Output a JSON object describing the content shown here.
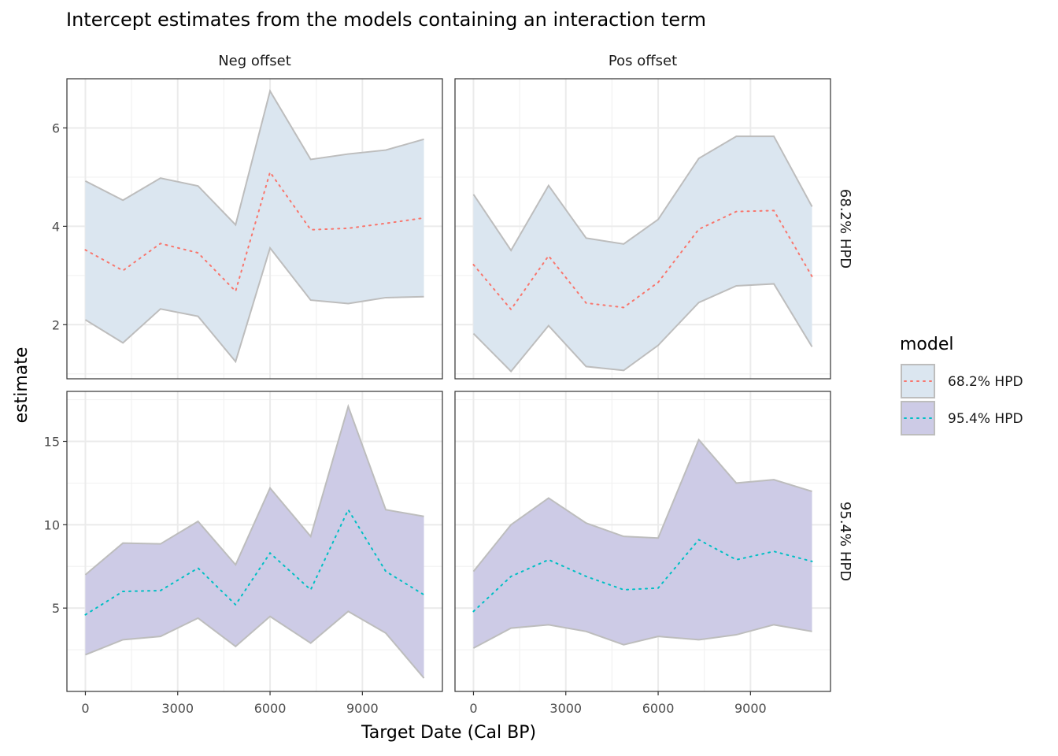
{
  "chart_data": {
    "type": "area",
    "title": "Intercept estimates from the models containing an interaction term",
    "xlabel": "Target Date (Cal BP)",
    "ylabel": "estimate",
    "facet_cols": [
      "Neg offset",
      "Pos offset"
    ],
    "facet_rows": [
      "68.2% HPD",
      "95.4% HPD"
    ],
    "x": [
      0,
      1220,
      2440,
      3660,
      4880,
      6000,
      7320,
      8540,
      9760,
      11000
    ],
    "xlim": [
      -600,
      11600
    ],
    "x_ticks": [
      0,
      3000,
      6000,
      9000
    ],
    "grid": true,
    "legend": {
      "title": "model",
      "position": "right",
      "items": [
        {
          "label": "68.2% HPD",
          "fill": "#dbe6f0",
          "line": "#f8766d"
        },
        {
          "label": "95.4% HPD",
          "fill": "#cdcbe6",
          "line": "#00bfc4"
        }
      ]
    },
    "rows": [
      {
        "strip": "68.2% HPD",
        "ylim": [
          0.9,
          7.0
        ],
        "y_ticks": [
          2,
          4,
          6
        ],
        "fill": "#dbe6f0",
        "mid_color": "#f8766d",
        "panels": [
          {
            "strip": "Neg offset",
            "upper": [
              4.92,
              4.53,
              4.98,
              4.82,
              4.03,
              6.75,
              5.36,
              5.47,
              5.55,
              5.77
            ],
            "mid": [
              3.52,
              3.1,
              3.65,
              3.46,
              2.68,
              5.1,
              3.93,
              3.96,
              4.06,
              4.17
            ],
            "lower": [
              2.1,
              1.63,
              2.32,
              2.17,
              1.25,
              3.56,
              2.5,
              2.43,
              2.55,
              2.57
            ]
          },
          {
            "strip": "Pos offset",
            "upper": [
              4.65,
              3.51,
              4.83,
              3.76,
              3.64,
              4.14,
              5.38,
              5.83,
              5.83,
              4.4
            ],
            "mid": [
              3.22,
              2.31,
              3.4,
              2.44,
              2.35,
              2.86,
              3.94,
              4.3,
              4.32,
              2.98
            ],
            "lower": [
              1.82,
              1.05,
              1.98,
              1.15,
              1.07,
              1.58,
              2.45,
              2.79,
              2.83,
              1.55
            ]
          }
        ]
      },
      {
        "strip": "95.4% HPD",
        "ylim": [
          0.0,
          18.0
        ],
        "y_ticks": [
          5,
          10,
          15
        ],
        "fill": "#cdcbe6",
        "mid_color": "#00bfc4",
        "panels": [
          {
            "strip": "Neg offset",
            "upper": [
              7.0,
              8.9,
              8.85,
              10.2,
              7.6,
              12.2,
              9.3,
              17.1,
              10.9,
              10.5
            ],
            "mid": [
              4.6,
              6.0,
              6.05,
              7.4,
              5.2,
              8.3,
              6.1,
              10.9,
              7.2,
              5.8
            ],
            "lower": [
              2.2,
              3.1,
              3.3,
              4.4,
              2.7,
              4.5,
              2.9,
              4.8,
              3.5,
              0.8
            ]
          },
          {
            "strip": "Pos offset",
            "upper": [
              7.2,
              10.0,
              11.6,
              10.1,
              9.3,
              9.2,
              15.1,
              12.5,
              12.7,
              12.0
            ],
            "mid": [
              4.8,
              6.9,
              7.9,
              6.9,
              6.1,
              6.2,
              9.1,
              7.9,
              8.4,
              7.8
            ],
            "lower": [
              2.6,
              3.8,
              4.0,
              3.6,
              2.8,
              3.3,
              3.1,
              3.4,
              4.0,
              3.6
            ]
          }
        ]
      }
    ]
  }
}
